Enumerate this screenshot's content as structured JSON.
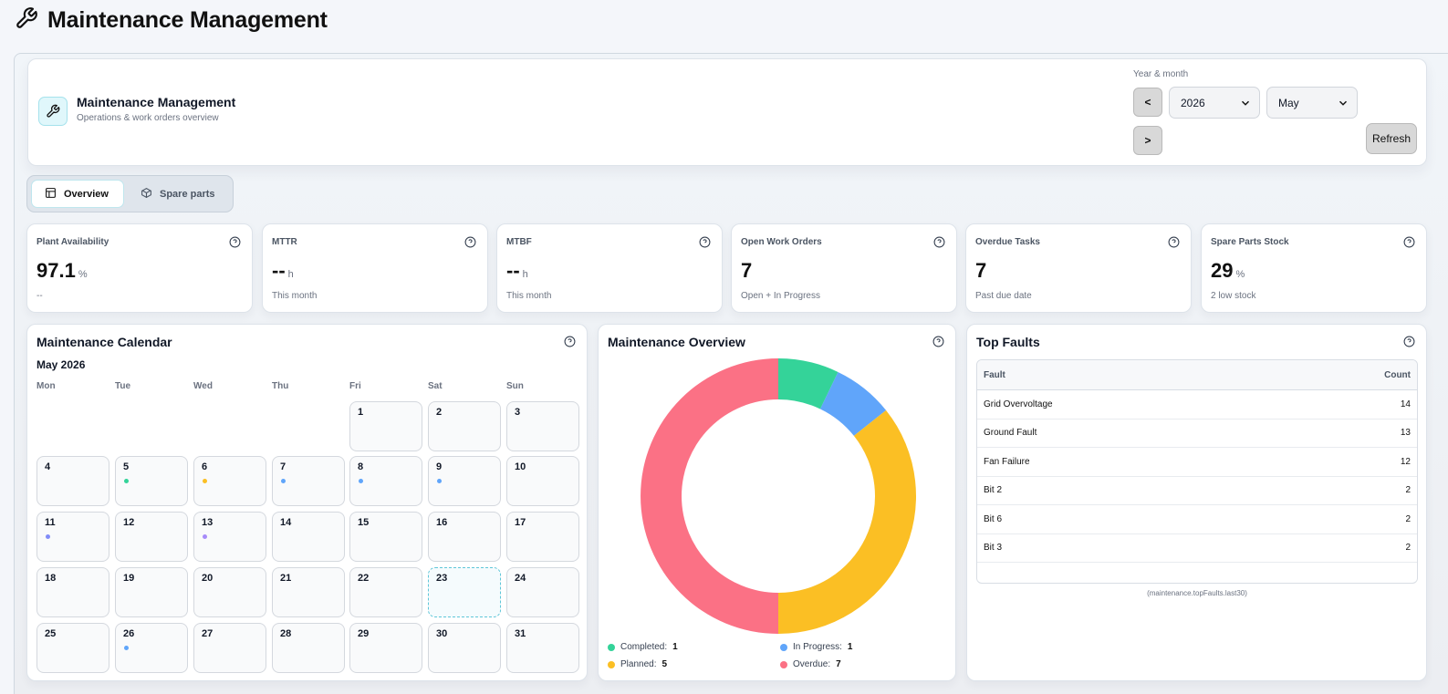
{
  "header": {
    "title": "Maintenance Management"
  },
  "brand": {
    "title": "Maintenance Management",
    "subtitle": "Operations & work orders overview"
  },
  "filters": {
    "label": "Year & month",
    "prev": "<",
    "next": ">",
    "year": "2026",
    "month": "May",
    "refresh": "Refresh"
  },
  "tabs": [
    {
      "label": "Overview"
    },
    {
      "label": "Spare parts"
    }
  ],
  "kpis": [
    {
      "label": "Plant Availability",
      "value": "97.1",
      "unit": "%",
      "sub": "--"
    },
    {
      "label": "MTTR",
      "value": "--",
      "unit": "h",
      "sub": "This month"
    },
    {
      "label": "MTBF",
      "value": "--",
      "unit": "h",
      "sub": "This month"
    },
    {
      "label": "Open Work Orders",
      "value": "7",
      "unit": "",
      "sub": "Open + In Progress"
    },
    {
      "label": "Overdue Tasks",
      "value": "7",
      "unit": "",
      "sub": "Past due date"
    },
    {
      "label": "Spare Parts Stock",
      "value": "29",
      "unit": "%",
      "sub": "2 low stock"
    }
  ],
  "calendar": {
    "title": "Maintenance Calendar",
    "month_label": "May 2026",
    "weekdays": [
      "Mon",
      "Tue",
      "Wed",
      "Thu",
      "Fri",
      "Sat",
      "Sun"
    ],
    "first_weekday_index": 4,
    "days_in_month": 31,
    "today": 23,
    "events": {
      "5": "#34d399",
      "6": "#fbbf24",
      "7": "#60a5fa",
      "8": "#60a5fa",
      "9": "#60a5fa",
      "11": "#818cf8",
      "13": "#a78bfa",
      "26": "#60a5fa"
    }
  },
  "overview": {
    "title": "Maintenance Overview",
    "chart_data": {
      "type": "pie",
      "categories": [
        "Completed",
        "In Progress",
        "Planned",
        "Overdue"
      ],
      "values": [
        1,
        1,
        5,
        7
      ],
      "colors": [
        "#34d399",
        "#60a5fa",
        "#fbbf24",
        "#fb7185"
      ],
      "legend": [
        {
          "label": "Completed:",
          "value": "1"
        },
        {
          "label": "In Progress:",
          "value": "1"
        },
        {
          "label": "Planned:",
          "value": "5"
        },
        {
          "label": "Overdue:",
          "value": "7"
        }
      ]
    }
  },
  "top_faults": {
    "title": "Top Faults",
    "col_fault": "Fault",
    "col_count": "Count",
    "rows": [
      {
        "fault": "Grid Overvoltage",
        "count": "14"
      },
      {
        "fault": "Ground Fault",
        "count": "13"
      },
      {
        "fault": "Fan Failure",
        "count": "12"
      },
      {
        "fault": "Bit 2",
        "count": "2"
      },
      {
        "fault": "Bit 6",
        "count": "2"
      },
      {
        "fault": "Bit 3",
        "count": "2"
      }
    ],
    "note": "(maintenance.topFaults.last30)"
  }
}
